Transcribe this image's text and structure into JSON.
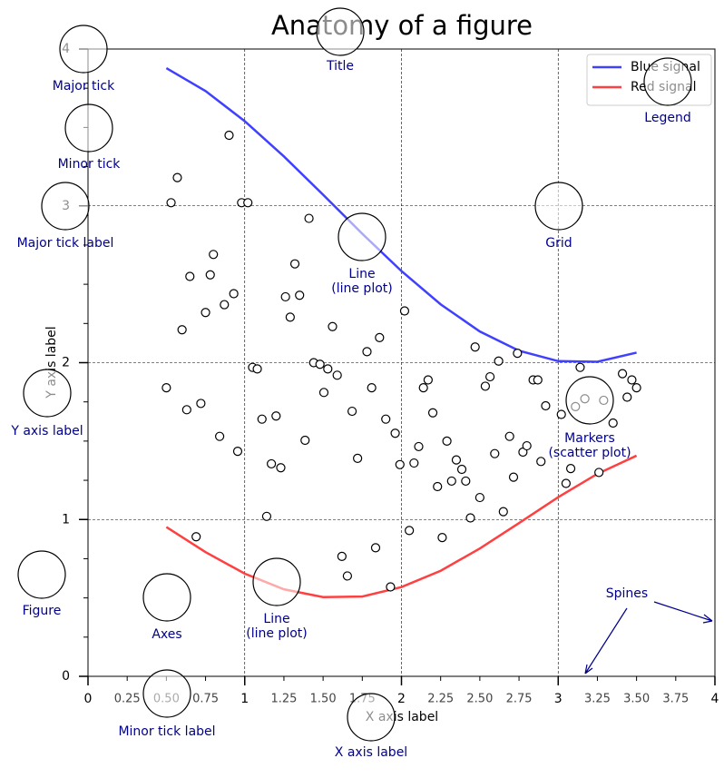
{
  "chart_data": {
    "type": "line",
    "title": "Anatomy of a figure",
    "x_label": "X axis label",
    "y_label": "Y axis label",
    "xlim": [
      0,
      4
    ],
    "ylim": [
      0,
      4
    ],
    "xticks": [
      0,
      1,
      2,
      3,
      4
    ],
    "xminorticks": [
      0.25,
      {
        "value": 0.5,
        "label": "0.50"
      },
      0.75,
      1.25,
      {
        "value": 1.5,
        "label": "1.50"
      },
      1.75,
      2.25,
      {
        "value": 2.5,
        "label": "2.50"
      },
      2.75,
      3.25,
      {
        "value": 3.5,
        "label": "3.50"
      },
      3.75
    ],
    "yticks": [
      0,
      1,
      2,
      3,
      4
    ],
    "yminorticks": [
      0.25,
      0.5,
      0.75,
      1.25,
      1.5,
      1.75,
      2.25,
      2.5,
      2.75,
      3.25,
      3.5,
      3.75
    ],
    "grid": true,
    "legend": "upper right",
    "x": [
      0.5,
      0.75,
      1.0,
      1.25,
      1.5,
      1.75,
      2.0,
      2.25,
      2.5,
      2.75,
      3.0,
      3.25,
      3.5
    ],
    "series": [
      {
        "name": "Blue signal",
        "color": "#4040ff",
        "values": [
          3.878,
          3.732,
          3.54,
          3.315,
          3.071,
          2.822,
          2.584,
          2.372,
          2.199,
          2.076,
          2.01,
          2.006,
          2.064
        ]
      },
      {
        "name": "Red signal",
        "color": "#ff4040",
        "values": [
          0.952,
          0.792,
          0.655,
          0.555,
          0.505,
          0.509,
          0.569,
          0.673,
          0.815,
          0.977,
          1.142,
          1.291,
          1.407
        ]
      },
      {
        "type": "scatter",
        "color": "#000000",
        "x": [
          0.9,
          0.57,
          0.53,
          0.98,
          1.02,
          1.41,
          0.8,
          0.65,
          0.78,
          1.32,
          0.93,
          0.87,
          0.75,
          1.26,
          1.35,
          1.29,
          0.6,
          1.56,
          2.02,
          1.86,
          1.78,
          1.05,
          1.08,
          1.44,
          1.48,
          1.53,
          1.59,
          1.505,
          1.81,
          2.17,
          2.14,
          0.5,
          0.72,
          0.63,
          1.11,
          1.2,
          1.685,
          1.9,
          2.2,
          1.96,
          0.84,
          1.385,
          0.955,
          2.11,
          2.29,
          1.72,
          1.99,
          2.08,
          1.17,
          1.23,
          2.35,
          2.385,
          2.32,
          2.41,
          2.23,
          2.5,
          2.47,
          2.565,
          2.535,
          2.62,
          2.74,
          2.84,
          2.87,
          2.92,
          2.595,
          2.69,
          2.775,
          2.8,
          2.715,
          2.65,
          2.89,
          3.02,
          3.11,
          3.14,
          3.17,
          3.29,
          3.35,
          3.41,
          3.47,
          3.44,
          3.5,
          3.08,
          3.05,
          3.26,
          1.14,
          2.44,
          2.05,
          2.26,
          0.69,
          1.835,
          1.62,
          1.655,
          1.93
        ],
        "values": [
          3.45,
          3.18,
          3.02,
          3.02,
          3.02,
          2.92,
          2.69,
          2.55,
          2.56,
          2.63,
          2.44,
          2.37,
          2.32,
          2.42,
          2.43,
          2.29,
          2.21,
          2.23,
          2.33,
          2.16,
          2.07,
          1.97,
          1.96,
          2.0,
          1.99,
          1.96,
          1.92,
          1.81,
          1.84,
          1.89,
          1.84,
          1.84,
          1.74,
          1.7,
          1.64,
          1.66,
          1.69,
          1.64,
          1.68,
          1.55,
          1.53,
          1.505,
          1.435,
          1.465,
          1.5,
          1.39,
          1.35,
          1.36,
          1.355,
          1.33,
          1.38,
          1.32,
          1.245,
          1.245,
          1.21,
          1.14,
          2.1,
          1.91,
          1.85,
          2.01,
          2.06,
          1.89,
          1.89,
          1.725,
          1.42,
          1.53,
          1.43,
          1.47,
          1.27,
          1.05,
          1.37,
          1.67,
          1.72,
          1.97,
          1.77,
          1.76,
          1.615,
          1.93,
          1.89,
          1.78,
          1.84,
          1.325,
          1.23,
          1.3,
          1.02,
          1.01,
          0.93,
          0.885,
          0.89,
          0.82,
          0.765,
          0.64,
          0.57
        ]
      }
    ],
    "annotations": [
      [
        "Title"
      ],
      [
        "Major tick"
      ],
      [
        "Minor tick"
      ],
      [
        "Major tick label"
      ],
      [
        "Y axis label"
      ],
      [
        "Figure"
      ],
      [
        "Axes"
      ],
      [
        "Line",
        "(line plot)"
      ],
      [
        "Grid"
      ],
      [
        "Legend"
      ],
      [
        "Line",
        "(line plot)"
      ],
      [
        "Markers",
        "(scatter plot)"
      ],
      [
        "Spines"
      ],
      [
        "Minor tick label"
      ],
      [
        "X axis label"
      ]
    ]
  }
}
